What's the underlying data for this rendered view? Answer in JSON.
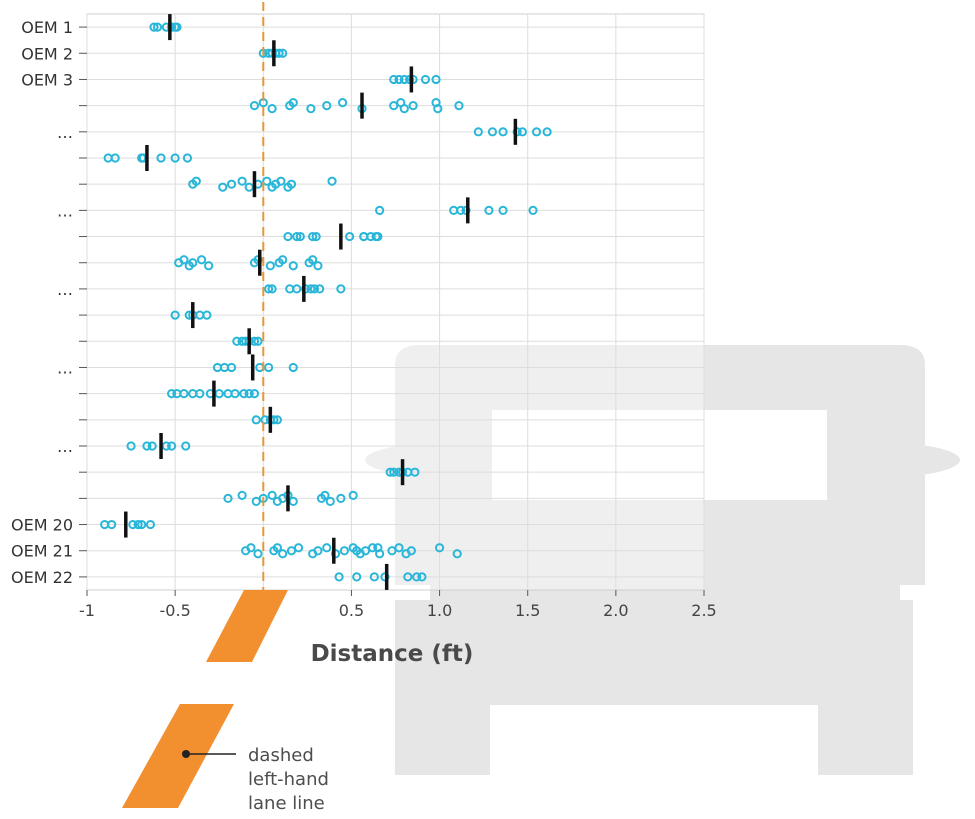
{
  "chart_data": {
    "type": "scatter",
    "xlabel": "Distance (ft)",
    "xlim": [
      -1,
      2.5
    ],
    "x_ticks": [
      "-1",
      "-0.5",
      "0",
      "0.5",
      "1.0",
      "1.5",
      "2.0",
      "2.5"
    ],
    "x_tick_values": [
      -1,
      -0.5,
      0,
      0.5,
      1.0,
      1.5,
      2.0,
      2.5
    ],
    "reference_x": 0,
    "rows": [
      {
        "label": "OEM 1",
        "mean": -0.53,
        "points": [
          -0.62,
          -0.6,
          -0.55,
          -0.52,
          -0.5,
          -0.49
        ]
      },
      {
        "label": "OEM 2",
        "mean": 0.06,
        "points": [
          0.0,
          0.03,
          0.05,
          0.07,
          0.09,
          0.11
        ]
      },
      {
        "label": "OEM 3",
        "mean": 0.84,
        "points": [
          0.74,
          0.77,
          0.8,
          0.83,
          0.85,
          0.92,
          0.98
        ]
      },
      {
        "label": "",
        "mean": 0.56,
        "points": [
          -0.05,
          0.0,
          0.05,
          0.15,
          0.17,
          0.27,
          0.36,
          0.45,
          0.56,
          0.74,
          0.78,
          0.8,
          0.85,
          0.98,
          0.99,
          1.11
        ]
      },
      {
        "label": "…",
        "mean": 1.43,
        "points": [
          1.22,
          1.3,
          1.36,
          1.44,
          1.47,
          1.55,
          1.61
        ]
      },
      {
        "label": "",
        "mean": -0.66,
        "points": [
          -0.88,
          -0.84,
          -0.69,
          -0.68,
          -0.58,
          -0.5,
          -0.43
        ]
      },
      {
        "label": "",
        "mean": -0.05,
        "points": [
          -0.4,
          -0.38,
          -0.23,
          -0.18,
          -0.12,
          -0.08,
          -0.03,
          0.02,
          0.05,
          0.07,
          0.1,
          0.14,
          0.16,
          0.39
        ]
      },
      {
        "label": "…",
        "mean": 1.16,
        "points": [
          0.66,
          1.08,
          1.12,
          1.15,
          1.28,
          1.36,
          1.53
        ]
      },
      {
        "label": "",
        "mean": 0.44,
        "points": [
          0.14,
          0.19,
          0.21,
          0.28,
          0.3,
          0.49,
          0.57,
          0.61,
          0.64,
          0.65,
          0.57
        ]
      },
      {
        "label": "",
        "mean": -0.02,
        "points": [
          -0.48,
          -0.45,
          -0.42,
          -0.4,
          -0.35,
          -0.31,
          -0.05,
          -0.03,
          0.04,
          0.09,
          0.11,
          0.17,
          0.26,
          0.28,
          0.31
        ]
      },
      {
        "label": "…",
        "mean": 0.23,
        "points": [
          0.03,
          0.05,
          0.15,
          0.19,
          0.24,
          0.27,
          0.29,
          0.32,
          0.44
        ]
      },
      {
        "label": "",
        "mean": -0.4,
        "points": [
          -0.5,
          -0.42,
          -0.4,
          -0.36,
          -0.32
        ]
      },
      {
        "label": "",
        "mean": -0.08,
        "points": [
          -0.15,
          -0.12,
          -0.1,
          -0.08,
          -0.05,
          -0.03
        ]
      },
      {
        "label": "…",
        "mean": -0.06,
        "points": [
          -0.26,
          -0.22,
          -0.18,
          -0.02,
          0.03,
          0.17
        ]
      },
      {
        "label": "",
        "mean": -0.28,
        "points": [
          -0.52,
          -0.49,
          -0.45,
          -0.4,
          -0.36,
          -0.3,
          -0.25,
          -0.2,
          -0.16,
          -0.11,
          -0.08,
          -0.05
        ]
      },
      {
        "label": "",
        "mean": 0.04,
        "points": [
          -0.04,
          0.01,
          0.04,
          0.06,
          0.08
        ]
      },
      {
        "label": "…",
        "mean": -0.58,
        "points": [
          -0.75,
          -0.66,
          -0.63,
          -0.55,
          -0.52,
          -0.44
        ]
      },
      {
        "label": "",
        "mean": 0.79,
        "points": [
          0.72,
          0.74,
          0.77,
          0.79,
          0.82,
          0.86
        ]
      },
      {
        "label": "",
        "mean": 0.14,
        "points": [
          -0.2,
          -0.12,
          -0.04,
          0.0,
          0.05,
          0.08,
          0.11,
          0.14,
          0.17,
          0.33,
          0.35,
          0.38,
          0.44,
          0.51
        ]
      },
      {
        "label": "OEM 20",
        "mean": -0.78,
        "points": [
          -0.9,
          -0.86,
          -0.74,
          -0.71,
          -0.69,
          -0.64
        ]
      },
      {
        "label": "OEM 21",
        "mean": 0.4,
        "points": [
          -0.1,
          -0.07,
          -0.03,
          0.06,
          0.08,
          0.11,
          0.16,
          0.2,
          0.28,
          0.31,
          0.36,
          0.41,
          0.46,
          0.51,
          0.55,
          0.58,
          0.62,
          0.66,
          0.73,
          0.77,
          0.81,
          0.84,
          1.0,
          1.1,
          0.53,
          0.65
        ]
      },
      {
        "label": "OEM 22",
        "mean": 0.7,
        "points": [
          0.43,
          0.53,
          0.63,
          0.69,
          0.82,
          0.87,
          0.9
        ]
      }
    ],
    "colors": {
      "points": "#29b6d8",
      "mean": "#111111",
      "reference": "#e8963a",
      "lane": "#f28f2e",
      "car": "#e6e6e6",
      "grid": "#dddddd"
    }
  },
  "legend": {
    "line1": "dashed",
    "line2": "left-hand",
    "line3": "lane line"
  }
}
